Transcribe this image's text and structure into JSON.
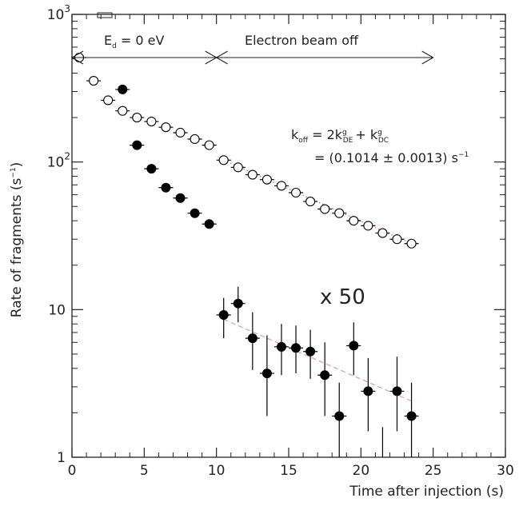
{
  "chart_data": {
    "type": "scatter",
    "ylog": true,
    "xlim": [
      0,
      30
    ],
    "ylim": [
      1,
      1000
    ],
    "xlabel": "Time after injection (s)",
    "ylabel_main": "Rate of fragments (s",
    "ylabel_exp": "−1",
    "ylabel_tail": ")",
    "x_ticks": [
      0,
      5,
      10,
      15,
      20,
      25,
      30
    ],
    "x_tick_labels": [
      "0",
      "5",
      "10",
      "15",
      "20",
      "25",
      "30"
    ],
    "y_ticks": [
      {
        "value": 1,
        "base": "1",
        "exp": ""
      },
      {
        "value": 10,
        "base": "10",
        "exp": ""
      },
      {
        "value": 100,
        "base": "10",
        "exp": "2"
      },
      {
        "value": 1000,
        "base": "10",
        "exp": "3"
      }
    ],
    "annotations": {
      "ed_label_main": "E",
      "ed_label_sub": "d",
      "ed_label_tail": " = 0 eV",
      "beam_off_label": "Electron beam off",
      "koff_lhs": "k",
      "koff_lhs_sub": "off",
      "koff_eq1": " = 2k",
      "koff_sup1": "g",
      "koff_sub1": "DE",
      "koff_plus": "+ k",
      "koff_sup2": "g",
      "koff_sub2": "DC",
      "koff_value": "= (0.1014 ± 0.0013) s",
      "koff_value_exp": "−1",
      "scale_note": "x 50"
    },
    "series": [
      {
        "marker": "open-circle",
        "x": [
          0.5,
          1.5,
          2.5,
          3.5,
          4.5,
          5.5,
          6.5,
          7.5,
          8.5,
          9.5,
          10.5,
          11.5,
          12.5,
          13.5,
          14.5,
          15.5,
          16.5,
          17.5,
          18.5,
          19.5,
          20.5,
          21.5,
          22.5,
          23.5
        ],
        "y": [
          510,
          355,
          262,
          222,
          200,
          188,
          172,
          158,
          143,
          130,
          103,
          92,
          82,
          76,
          69,
          62,
          54,
          48,
          45,
          40,
          37,
          33,
          30,
          28
        ]
      },
      {
        "marker": "filled-circle",
        "x": [
          3.5,
          4.5,
          5.5,
          6.5,
          7.5,
          8.5,
          9.5
        ],
        "y": [
          310,
          130,
          90,
          67,
          57,
          45,
          38
        ]
      },
      {
        "marker": "filled-circle",
        "x": [
          10.5,
          11.5,
          12.5,
          13.5,
          14.5,
          15.5,
          16.5,
          17.5,
          18.5,
          19.5,
          20.5,
          22.5,
          23.5
        ],
        "y": [
          9.2,
          11.0,
          6.4,
          3.7,
          5.6,
          5.5,
          5.2,
          3.6,
          1.9,
          5.7,
          2.8,
          2.8,
          1.9
        ],
        "yerr_low": [
          6.4,
          8.2,
          3.9,
          1.9,
          3.6,
          3.7,
          3.4,
          1.9,
          1.0,
          3.6,
          1.5,
          1.5,
          1.0
        ],
        "yerr_high": [
          12.0,
          14.3,
          9.6,
          6.7,
          8.0,
          7.8,
          7.3,
          6.0,
          3.2,
          8.2,
          4.7,
          4.8,
          3.2
        ]
      },
      {
        "marker": "error-bar-only",
        "x": [
          21.5
        ],
        "y": [
          1.0
        ],
        "yerr_low": [
          1.0
        ],
        "yerr_high": [
          1.6
        ]
      }
    ],
    "fits": [
      {
        "style": "dotted",
        "color": "#d06a6a",
        "x": [
          10.5,
          23.5
        ],
        "y": [
          103,
          28
        ]
      },
      {
        "style": "dashed",
        "color": "#e8a0a0",
        "x": [
          10.5,
          23.5
        ],
        "y": [
          8.6,
          2.4
        ]
      }
    ],
    "colors": {
      "axis": "#222222",
      "points": "#000000",
      "fit": "#d06a6a"
    }
  }
}
